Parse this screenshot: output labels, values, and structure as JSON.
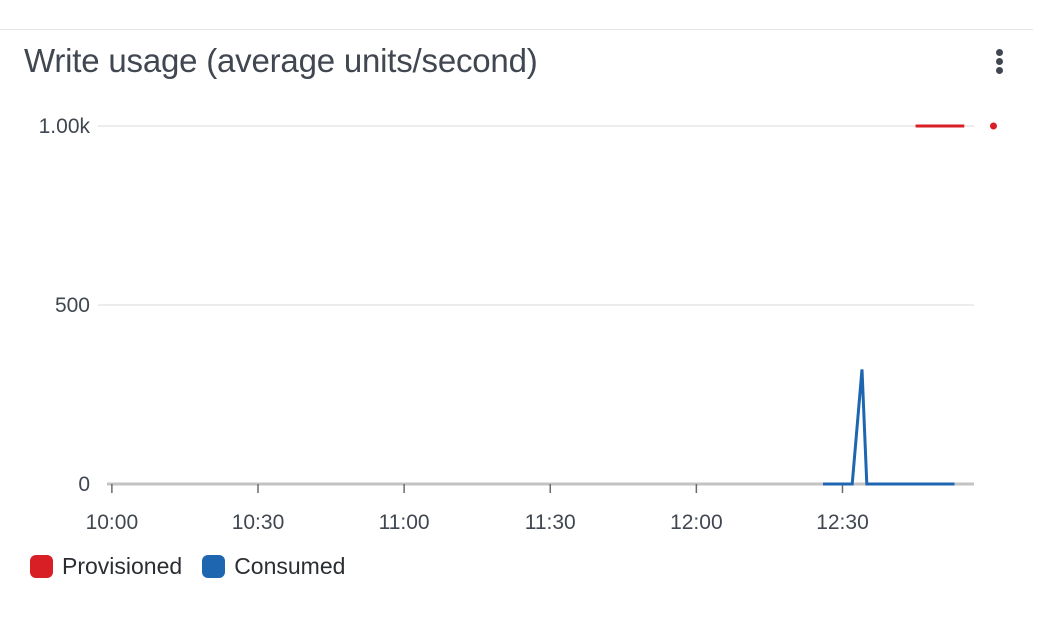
{
  "widget": {
    "title": "Write usage (average units/second)",
    "menu_icon": "more-vertical-icon"
  },
  "colors": {
    "provisioned": "#d91f26",
    "consumed": "#1f66b0",
    "baseline": "#c3c3c3",
    "grid": "#e6e6e6"
  },
  "chart_data": {
    "type": "line",
    "title": "Write usage (average units/second)",
    "xlabel": "",
    "ylabel": "",
    "xlim": [
      "09:59",
      "12:57"
    ],
    "ylim": [
      0,
      1000
    ],
    "x_ticks": [
      "10:00",
      "10:30",
      "11:00",
      "11:30",
      "12:00",
      "12:30"
    ],
    "y_ticks": [
      "0",
      "500",
      "1.00k"
    ],
    "y_tick_values": [
      0,
      500,
      1000
    ],
    "grid": true,
    "legend_position": "bottom-left",
    "series": [
      {
        "name": "Provisioned",
        "color": "#d91f26",
        "segments": [
          [
            {
              "x": "12:45",
              "y": 1000
            },
            {
              "x": "12:55",
              "y": 1000
            }
          ],
          [
            {
              "x": "13:01",
              "y": 1000
            }
          ]
        ]
      },
      {
        "name": "Consumed",
        "color": "#1f66b0",
        "segments": [
          [
            {
              "x": "12:26",
              "y": 0
            },
            {
              "x": "12:32",
              "y": 0
            },
            {
              "x": "12:34",
              "y": 320
            },
            {
              "x": "12:35",
              "y": 0
            },
            {
              "x": "12:53",
              "y": 0
            }
          ]
        ]
      }
    ]
  }
}
